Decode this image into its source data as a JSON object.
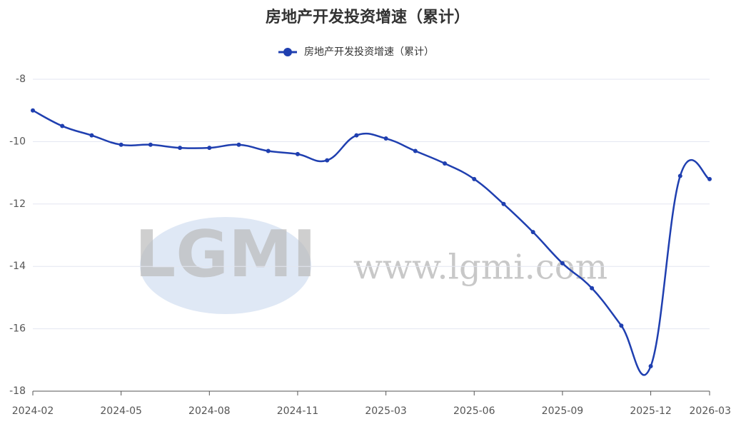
{
  "chart_data": {
    "type": "line",
    "title": "房地产开发投资增速（累计）",
    "watermark": "www.lgmi.com",
    "logo": "LGMI",
    "categories": [
      "2024-02",
      null,
      null,
      "2024-05",
      null,
      null,
      "2024-08",
      null,
      null,
      "2024-11",
      null,
      null,
      "2025-03",
      null,
      null,
      "2025-06",
      null,
      null,
      "2025-09",
      null,
      null,
      "2025-12",
      null,
      "2026-03"
    ],
    "series": [
      {
        "name": "房地产开发投资增速（累计）",
        "color": "#1f3fb0",
        "values": [
          -9.0,
          -9.5,
          -9.8,
          -10.1,
          -10.1,
          -10.2,
          -10.2,
          -10.1,
          -10.3,
          -10.4,
          -10.6,
          -9.8,
          -9.9,
          -10.3,
          -10.7,
          -11.2,
          -12.0,
          -12.9,
          -13.9,
          -14.7,
          -15.9,
          -17.2,
          -11.1,
          -11.2
        ]
      }
    ],
    "ylim": [
      -18,
      -8
    ],
    "yticks": [
      -18,
      -16,
      -14,
      -12,
      -10,
      -8
    ],
    "grid": true,
    "legend": "top"
  }
}
